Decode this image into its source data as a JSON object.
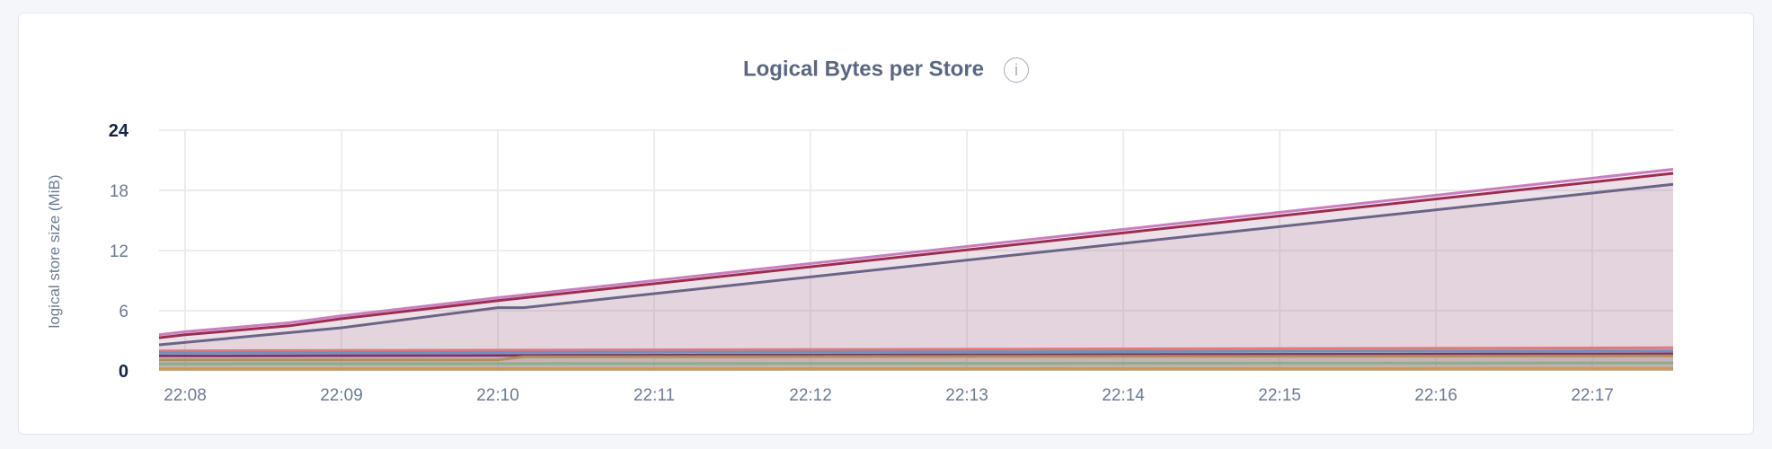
{
  "title": "Logical Bytes per Store",
  "info_icon": "info-icon",
  "chart_data": {
    "type": "area",
    "title": "Logical Bytes per Store",
    "xlabel": "",
    "ylabel": "logical store size (MiB)",
    "ylim": [
      0,
      24
    ],
    "xlim": [
      "22:07:50",
      "22:17:31"
    ],
    "yticks": [
      "0",
      "6",
      "12",
      "18",
      "24"
    ],
    "xticks": [
      "22:08",
      "22:09",
      "22:10",
      "22:11",
      "22:12",
      "22:13",
      "22:14",
      "22:15",
      "22:16",
      "22:17"
    ],
    "grid": true,
    "legend": "none",
    "series": [
      {
        "color": "#c97fbf",
        "x": [
          "22:07:50",
          "22:08:00",
          "22:08:40",
          "22:09:00",
          "22:10:00",
          "22:17:31"
        ],
        "y": [
          3.6,
          3.9,
          4.8,
          5.5,
          7.3,
          20.1
        ]
      },
      {
        "color": "#9c2d50",
        "x": [
          "22:07:50",
          "22:08:00",
          "22:08:40",
          "22:09:00",
          "22:10:00",
          "22:17:31"
        ],
        "y": [
          3.3,
          3.6,
          4.5,
          5.2,
          7.0,
          19.7
        ]
      },
      {
        "color": "#6a6586",
        "x": [
          "22:07:50",
          "22:09:00",
          "22:10:00",
          "22:10:10",
          "22:17:31"
        ],
        "y": [
          2.6,
          4.3,
          6.3,
          6.3,
          18.6
        ]
      },
      {
        "color": "#e07a7a",
        "x": [
          "22:07:50",
          "22:17:31"
        ],
        "y": [
          2.0,
          2.3
        ]
      },
      {
        "color": "#6f8fc0",
        "x": [
          "22:07:50",
          "22:17:31"
        ],
        "y": [
          1.8,
          2.0
        ]
      },
      {
        "color": "#7c3365",
        "x": [
          "22:07:50",
          "22:17:31"
        ],
        "y": [
          1.5,
          1.7
        ]
      },
      {
        "color": "#b0905a",
        "x": [
          "22:07:50",
          "22:10:00",
          "22:10:10",
          "22:17:31"
        ],
        "y": [
          1.1,
          1.1,
          1.4,
          1.5
        ]
      },
      {
        "color": "#86b088",
        "x": [
          "22:07:50",
          "22:17:31"
        ],
        "y": [
          0.7,
          0.8
        ]
      },
      {
        "color": "#c99a5a",
        "x": [
          "22:07:50",
          "22:17:31"
        ],
        "y": [
          0.2,
          0.25
        ]
      }
    ]
  }
}
